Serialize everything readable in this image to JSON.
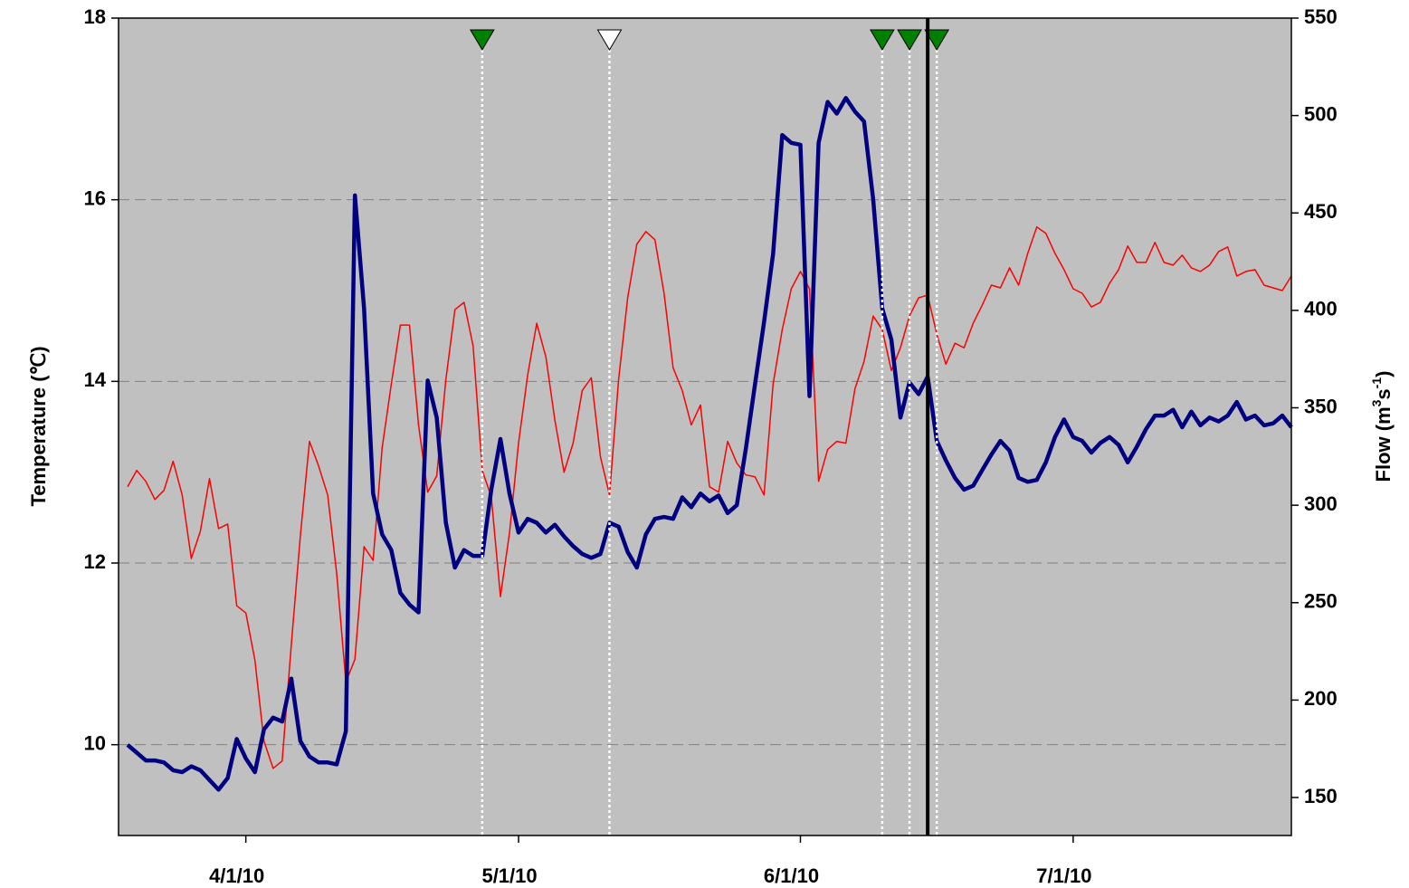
{
  "chart_data": {
    "type": "line",
    "ylabel": "Temperature (℃)",
    "y2label": [
      "Flow (m",
      "3",
      "s",
      "-1",
      ")"
    ],
    "xlim": [
      "3/18/10",
      "7/25/10"
    ],
    "xticks": [
      "4/1/10",
      "5/1/10",
      "6/1/10",
      "7/1/10"
    ],
    "ylim": [
      9,
      18
    ],
    "yticks": [
      10,
      12,
      14,
      16,
      18
    ],
    "y2lim": [
      130.5,
      550
    ],
    "y2ticks": [
      150,
      200,
      250,
      300,
      350,
      400,
      450,
      500,
      550
    ],
    "grid": true,
    "x": [
      "3/19/10",
      "3/20/10",
      "3/21/10",
      "3/22/10",
      "3/23/10",
      "3/24/10",
      "3/25/10",
      "3/26/10",
      "3/27/10",
      "3/28/10",
      "3/29/10",
      "3/30/10",
      "3/31/10",
      "4/1/10",
      "4/2/10",
      "4/3/10",
      "4/4/10",
      "4/5/10",
      "4/6/10",
      "4/7/10",
      "4/8/10",
      "4/9/10",
      "4/10/10",
      "4/11/10",
      "4/12/10",
      "4/13/10",
      "4/14/10",
      "4/15/10",
      "4/16/10",
      "4/17/10",
      "4/18/10",
      "4/19/10",
      "4/20/10",
      "4/21/10",
      "4/22/10",
      "4/23/10",
      "4/24/10",
      "4/25/10",
      "4/26/10",
      "4/27/10",
      "4/28/10",
      "4/29/10",
      "4/30/10",
      "5/1/10",
      "5/2/10",
      "5/3/10",
      "5/4/10",
      "5/5/10",
      "5/6/10",
      "5/7/10",
      "5/8/10",
      "5/9/10",
      "5/10/10",
      "5/11/10",
      "5/12/10",
      "5/13/10",
      "5/14/10",
      "5/15/10",
      "5/16/10",
      "5/17/10",
      "5/18/10",
      "5/19/10",
      "5/20/10",
      "5/21/10",
      "5/22/10",
      "5/23/10",
      "5/24/10",
      "5/25/10",
      "5/26/10",
      "5/27/10",
      "5/28/10",
      "5/29/10",
      "5/30/10",
      "5/31/10",
      "6/1/10",
      "6/2/10",
      "6/3/10",
      "6/4/10",
      "6/5/10",
      "6/6/10",
      "6/7/10",
      "6/8/10",
      "6/9/10",
      "6/10/10",
      "6/11/10",
      "6/12/10",
      "6/13/10",
      "6/14/10",
      "6/15/10",
      "6/16/10",
      "6/17/10",
      "6/18/10",
      "6/19/10",
      "6/20/10",
      "6/21/10",
      "6/22/10",
      "6/23/10",
      "6/24/10",
      "6/25/10",
      "6/26/10",
      "6/27/10",
      "6/28/10",
      "6/29/10",
      "6/30/10",
      "7/1/10",
      "7/2/10",
      "7/3/10",
      "7/4/10",
      "7/5/10",
      "7/6/10",
      "7/7/10",
      "7/8/10",
      "7/9/10",
      "7/10/10",
      "7/11/10",
      "7/12/10",
      "7/13/10",
      "7/14/10",
      "7/15/10",
      "7/16/10",
      "7/17/10",
      "7/18/10",
      "7/19/10",
      "7/20/10",
      "7/21/10",
      "7/22/10",
      "7/23/10",
      "7/24/10",
      "7/25/10"
    ],
    "series": [
      {
        "color": "#ff0000",
        "values": [
          12.84,
          13.02,
          12.9,
          12.7,
          12.8,
          13.12,
          12.75,
          12.05,
          12.35,
          12.93,
          12.38,
          12.43,
          11.53,
          11.45,
          10.93,
          10.04,
          9.74,
          9.82,
          11.1,
          12.3,
          13.34,
          13.07,
          12.75,
          11.88,
          10.69,
          10.94,
          12.18,
          12.03,
          13.27,
          13.97,
          14.62,
          14.62,
          13.52,
          12.78,
          12.96,
          14.02,
          14.79,
          14.87,
          14.39,
          13.02,
          12.73,
          11.63,
          12.33,
          13.32,
          14.07,
          14.64,
          14.27,
          13.57,
          13.0,
          13.32,
          13.9,
          14.04,
          13.17,
          12.75,
          14.02,
          14.92,
          15.51,
          15.65,
          15.56,
          14.97,
          14.15,
          13.9,
          13.52,
          13.74,
          12.84,
          12.78,
          13.34,
          13.1,
          12.97,
          12.95,
          12.75,
          13.97,
          14.57,
          15.02,
          15.21,
          15.02,
          12.9,
          13.25,
          13.34,
          13.32,
          13.92,
          14.22,
          14.72,
          14.57,
          14.12,
          14.37,
          14.72,
          14.92,
          14.95,
          14.52,
          14.19,
          14.42,
          14.37,
          14.64,
          14.84,
          15.06,
          15.03,
          15.25,
          15.06,
          15.41,
          15.7,
          15.63,
          15.41,
          15.23,
          15.02,
          14.97,
          14.82,
          14.87,
          15.08,
          15.23,
          15.49,
          15.31,
          15.31,
          15.53,
          15.31,
          15.28,
          15.39,
          15.25,
          15.21,
          15.28,
          15.43,
          15.48,
          15.16,
          15.21,
          15.23,
          15.06,
          15.03,
          15.0,
          15.16
        ]
      },
      {
        "color": "#000080",
        "axis": "y2",
        "values": [
          177,
          173,
          169,
          169,
          168,
          164,
          163,
          166,
          164,
          159,
          154,
          160,
          180,
          170,
          163,
          185,
          191,
          189,
          211,
          179,
          171,
          168,
          168,
          167,
          184,
          459,
          401,
          306,
          285,
          277,
          255,
          249,
          245,
          364,
          345,
          291,
          268,
          277,
          274,
          274,
          308,
          334,
          306,
          286,
          293,
          291,
          286,
          290,
          284,
          279,
          275,
          273,
          275,
          291,
          289,
          276,
          268,
          285,
          293,
          294,
          293,
          304,
          299,
          306,
          302,
          305,
          296,
          300,
          329,
          362,
          394,
          429,
          490,
          486,
          485,
          356,
          486,
          507,
          501,
          509,
          502,
          497,
          457,
          401,
          385,
          345,
          363,
          357,
          366,
          333,
          323,
          314,
          308,
          310,
          318,
          326,
          333,
          328,
          314,
          312,
          313,
          322,
          335,
          344,
          335,
          333,
          327,
          332,
          335,
          331,
          322,
          330,
          339,
          346,
          346,
          349,
          340,
          348,
          341,
          345,
          343,
          346,
          353,
          344,
          346,
          341,
          342,
          346,
          340
        ]
      }
    ],
    "markers": {
      "x": [
        "4/27/10",
        "5/11/10",
        "6/10/10",
        "6/13/10",
        "6/16/10"
      ],
      "colors": [
        "#008000",
        "#ffffff",
        "#008000",
        "#008000",
        "#008000"
      ]
    },
    "reference_line_x": "6/15/10"
  }
}
